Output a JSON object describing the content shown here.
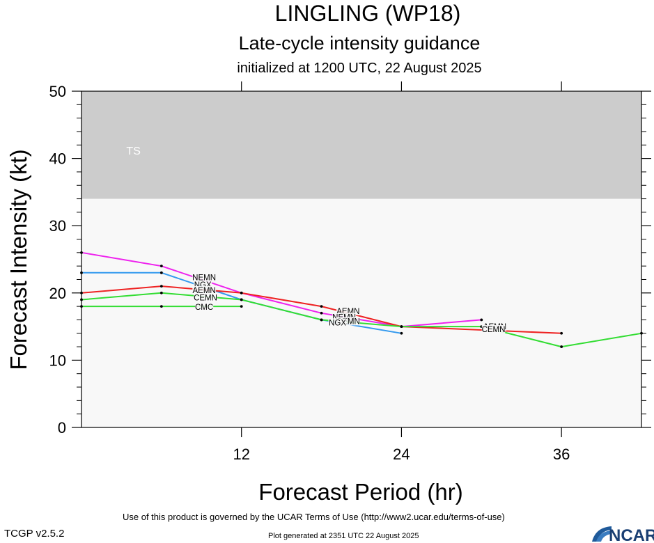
{
  "header": {
    "title": "LINGLING (WP18)",
    "subtitle": "Late-cycle intensity guidance",
    "init": "initialized at 1200 UTC, 22 August 2025"
  },
  "footer": {
    "terms": "Use of this product is governed by the UCAR Terms of Use (http://www2.ucar.edu/terms-of-use)",
    "generated": "Plot generated at 2351 UTC   22 August 2025",
    "version": "TCGP v2.5.2",
    "logo_text": "NCAR"
  },
  "chart_data": {
    "type": "line",
    "xlabel": "Forecast Period (hr)",
    "ylabel": "Forecast Intensity (kt)",
    "xlim": [
      0,
      42
    ],
    "ylim": [
      0,
      50
    ],
    "xticks": [
      12,
      24,
      36
    ],
    "yticks": [
      0,
      10,
      20,
      30,
      40,
      50
    ],
    "grid": false,
    "bands": [
      {
        "label": "TS",
        "from": 34,
        "to": 50,
        "color": "#cccccc"
      }
    ],
    "plot_background": "#f8f8f8",
    "series": [
      {
        "name": "NEMN",
        "color": "#ee22ee",
        "x": [
          0,
          6,
          12,
          18,
          24,
          30
        ],
        "y": [
          26,
          24,
          20,
          17,
          15,
          16
        ]
      },
      {
        "name": "NGX",
        "color": "#3399ee",
        "x": [
          0,
          6,
          12,
          18,
          24
        ],
        "y": [
          23,
          23,
          19,
          16,
          14
        ]
      },
      {
        "name": "AEMN",
        "color": "#ee2222",
        "x": [
          0,
          6,
          12,
          18,
          24,
          36
        ],
        "y": [
          20,
          21,
          20,
          18,
          15,
          14
        ]
      },
      {
        "name": "CEMN",
        "color": "#33dd33",
        "x": [
          0,
          6,
          12,
          18,
          24,
          30,
          36,
          42
        ],
        "y": [
          19,
          20,
          19,
          16,
          15,
          15,
          12,
          14
        ]
      },
      {
        "name": "CMC",
        "color": "#33dd33",
        "x": [
          0,
          6,
          12
        ],
        "y": [
          18,
          18,
          18
        ]
      }
    ],
    "line_labels": [
      {
        "text": "NEMN",
        "x": 9.2,
        "y": 22.3
      },
      {
        "text": "NGX",
        "x": 9.1,
        "y": 21.2
      },
      {
        "text": "AEMN",
        "x": 9.2,
        "y": 20.4
      },
      {
        "text": "CEMN",
        "x": 9.3,
        "y": 19.3
      },
      {
        "text": "CMC",
        "x": 9.2,
        "y": 17.9
      },
      {
        "text": "AEMN",
        "x": 20.0,
        "y": 17.3
      },
      {
        "text": "NEMN",
        "x": 19.7,
        "y": 16.4
      },
      {
        "text": "CEMN",
        "x": 20.0,
        "y": 15.8
      },
      {
        "text": "NGX",
        "x": 19.2,
        "y": 15.6
      },
      {
        "text": "AEMN",
        "x": 31.0,
        "y": 15.0
      },
      {
        "text": "CEMN",
        "x": 30.9,
        "y": 14.6
      }
    ]
  }
}
